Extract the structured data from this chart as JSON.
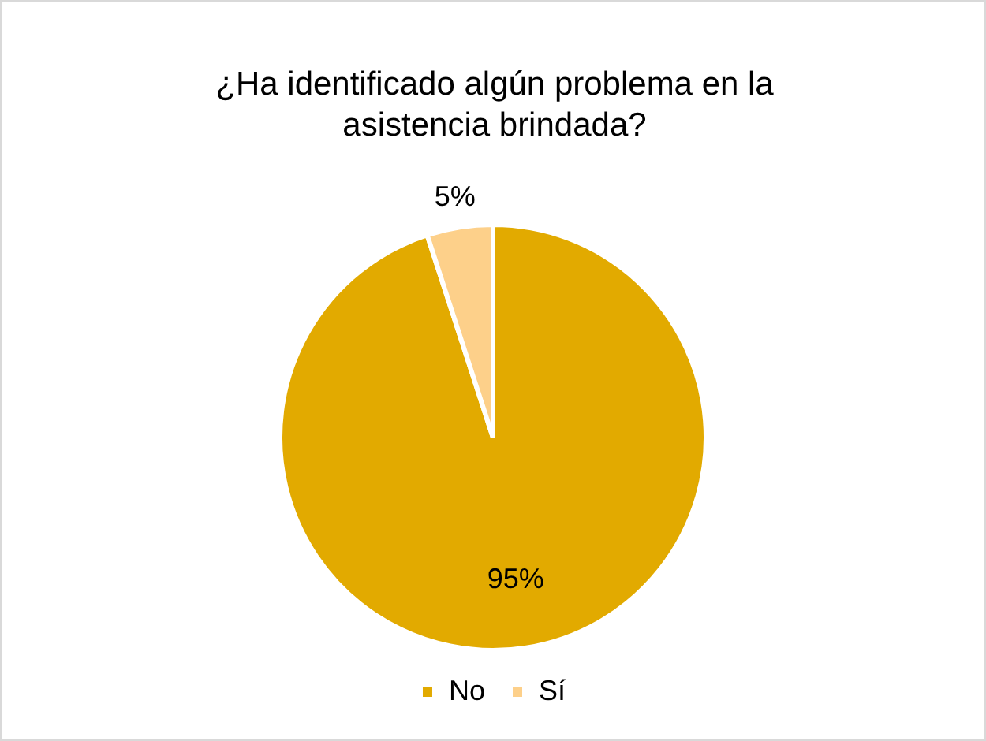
{
  "chart_data": {
    "type": "pie",
    "title": "¿Ha identificado algún problema en la asistencia brindada?",
    "categories": [
      "No",
      "Sí"
    ],
    "values": [
      95,
      5
    ],
    "colors": [
      "#e2aa00",
      "#fdd08a"
    ],
    "value_labels": [
      "95%",
      "5%"
    ],
    "legend": "bottom"
  }
}
